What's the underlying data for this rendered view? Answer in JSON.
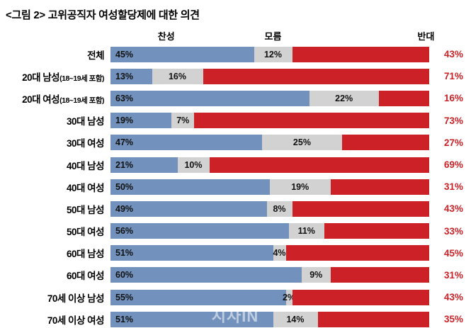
{
  "title": "<그림 2> 고위공직자 여성할당제에 대한 의견",
  "watermark": "시사IN",
  "legend": {
    "agree": "찬성",
    "unknown": "모름",
    "oppose": "반대"
  },
  "colors": {
    "agree": "#7291bc",
    "unknown": "#d2d2d2",
    "oppose": "#cb2127",
    "label_text": "#111111"
  },
  "chart_data": {
    "type": "bar",
    "orientation": "horizontal",
    "stacked": true,
    "title": "<그림 2> 고위공직자 여성할당제에 대한 의견",
    "unit": "%",
    "xlim": [
      0,
      100
    ],
    "legend_position": "top",
    "categories": [
      "전체",
      "20대 남성(18~19세 포함)",
      "20대 여성(18~19세 포함)",
      "30대 남성",
      "30대 여성",
      "40대 남성",
      "40대 여성",
      "50대 남성",
      "50대 여성",
      "60대 남성",
      "60대 여성",
      "70세 이상 남성",
      "70세 이상 여성"
    ],
    "series": [
      {
        "name": "찬성",
        "color": "#7291bc",
        "values": [
          45,
          13,
          63,
          19,
          47,
          21,
          50,
          49,
          56,
          51,
          60,
          55,
          51
        ]
      },
      {
        "name": "모름",
        "color": "#d2d2d2",
        "values": [
          12,
          16,
          22,
          7,
          25,
          10,
          19,
          8,
          11,
          4,
          9,
          2,
          14
        ]
      },
      {
        "name": "반대",
        "color": "#cb2127",
        "values": [
          43,
          71,
          16,
          73,
          27,
          69,
          31,
          43,
          33,
          45,
          31,
          43,
          35
        ]
      }
    ]
  }
}
